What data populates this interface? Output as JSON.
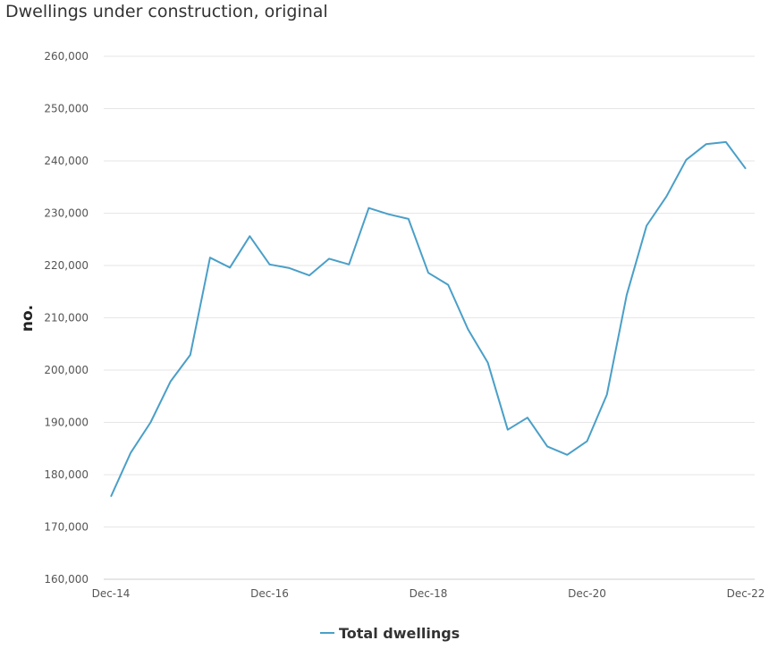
{
  "chart_data": {
    "type": "line",
    "title": "Dwellings under construction, original",
    "xlabel": "",
    "ylabel": "no.",
    "ylim": [
      160000,
      260000
    ],
    "yticks": [
      160000,
      170000,
      180000,
      190000,
      200000,
      210000,
      220000,
      230000,
      240000,
      250000,
      260000
    ],
    "ytick_labels": [
      "160,000",
      "170,000",
      "180,000",
      "190,000",
      "200,000",
      "210,000",
      "220,000",
      "230,000",
      "240,000",
      "250,000",
      "260,000"
    ],
    "xtick_labels": [
      "Dec-14",
      "Dec-16",
      "Dec-18",
      "Dec-20",
      "Dec-22"
    ],
    "xtick_positions": [
      "Dec-14",
      "Dec-16",
      "Dec-18",
      "Dec-20",
      "Dec-22"
    ],
    "x": [
      "Dec-14",
      "Mar-15",
      "Jun-15",
      "Sep-15",
      "Dec-15",
      "Mar-16",
      "Jun-16",
      "Sep-16",
      "Dec-16",
      "Mar-17",
      "Jun-17",
      "Sep-17",
      "Dec-17",
      "Mar-18",
      "Jun-18",
      "Sep-18",
      "Dec-18",
      "Mar-19",
      "Jun-19",
      "Sep-19",
      "Dec-19",
      "Mar-20",
      "Jun-20",
      "Sep-20",
      "Dec-20",
      "Mar-21",
      "Jun-21",
      "Sep-21",
      "Dec-21",
      "Mar-22",
      "Jun-22",
      "Sep-22",
      "Dec-22"
    ],
    "series": [
      {
        "name": "Total dwellings",
        "color": "#4a9fc8",
        "values": [
          175800,
          184200,
          190000,
          197800,
          202900,
          221500,
          219600,
          225600,
          220200,
          219500,
          218100,
          221300,
          220200,
          231000,
          229800,
          228900,
          218600,
          216300,
          207800,
          201400,
          188600,
          190900,
          185400,
          183800,
          186400,
          195300,
          214400,
          227600,
          233200,
          240200,
          243200,
          243600,
          238500
        ]
      }
    ],
    "grid": true,
    "legend_position": "bottom-center"
  }
}
